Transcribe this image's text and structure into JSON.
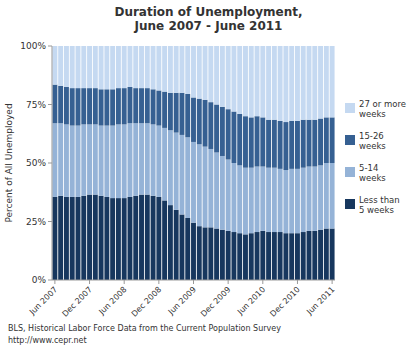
{
  "chart_data": {
    "type": "bar",
    "stacked": true,
    "title": "Duration of Unemployment,\nJune 2007 - June 2011",
    "y_label": "Percent of All Unemployed",
    "annotations": [
      "BLS, Historical Labor Force Data from the Current Population Survey",
      "http://www.cepr.net"
    ],
    "categories": [
      "Jun 2007",
      null,
      null,
      null,
      null,
      null,
      "Dec 2007",
      null,
      null,
      null,
      null,
      null,
      "Jun 2008",
      null,
      null,
      null,
      null,
      null,
      "Dec 2008",
      null,
      null,
      null,
      null,
      null,
      "Jun 2009",
      null,
      null,
      null,
      null,
      null,
      "Dec 2009",
      null,
      null,
      null,
      null,
      null,
      "Jun 2010",
      null,
      null,
      null,
      null,
      null,
      "Dec 2010",
      null,
      null,
      null,
      null,
      null,
      "Jun 2011"
    ],
    "series": [
      {
        "name": "Less than\n5 weeks",
        "color": "#17375E",
        "values": [
          35.5,
          36.0,
          35.5,
          35.5,
          35.5,
          36.0,
          36.5,
          36.5,
          36.0,
          35.5,
          35.0,
          35.0,
          35.0,
          35.5,
          36.0,
          36.5,
          36.5,
          36.0,
          35.5,
          34.0,
          32.0,
          30.0,
          28.0,
          26.5,
          24.5,
          23.0,
          22.5,
          22.5,
          22.0,
          21.5,
          21.0,
          20.5,
          20.0,
          19.5,
          20.0,
          20.5,
          21.0,
          20.5,
          20.5,
          20.5,
          20.0,
          20.0,
          20.0,
          20.5,
          21.0,
          21.0,
          21.5,
          22.0,
          22.0
        ]
      },
      {
        "name": "5-14\nweeks",
        "color": "#95B3D7",
        "values": [
          31.5,
          31.0,
          31.0,
          30.5,
          30.5,
          30.5,
          30.0,
          30.0,
          30.0,
          30.5,
          31.0,
          31.5,
          31.5,
          31.5,
          31.0,
          30.5,
          30.5,
          30.5,
          30.5,
          31.0,
          32.0,
          33.0,
          34.0,
          34.5,
          34.5,
          35.0,
          34.5,
          33.5,
          32.5,
          31.5,
          30.5,
          29.5,
          29.0,
          28.5,
          28.0,
          28.0,
          27.5,
          27.5,
          27.5,
          27.0,
          27.0,
          27.5,
          27.5,
          27.5,
          27.5,
          27.5,
          27.5,
          28.0,
          28.0
        ]
      },
      {
        "name": "15-26\nweeks",
        "color": "#366092",
        "values": [
          16.5,
          16.0,
          16.0,
          16.0,
          16.0,
          15.5,
          15.5,
          15.5,
          15.5,
          15.5,
          15.5,
          15.5,
          15.5,
          15.5,
          15.0,
          15.0,
          15.0,
          15.0,
          15.0,
          15.5,
          16.0,
          17.0,
          18.0,
          18.5,
          19.0,
          19.5,
          20.0,
          20.0,
          20.5,
          21.0,
          21.5,
          22.0,
          22.0,
          22.0,
          21.5,
          21.5,
          21.0,
          20.5,
          20.5,
          20.5,
          20.5,
          20.5,
          20.5,
          20.5,
          20.0,
          20.0,
          20.0,
          19.5,
          19.5
        ]
      },
      {
        "name": "27 or more\nweeks",
        "color": "#C5D9F1",
        "values": [
          16.5,
          17.0,
          17.5,
          18.0,
          18.0,
          18.0,
          18.0,
          18.0,
          18.5,
          18.5,
          18.5,
          18.0,
          18.0,
          17.5,
          18.0,
          18.0,
          18.0,
          18.5,
          19.0,
          19.5,
          20.0,
          20.0,
          20.0,
          20.5,
          22.0,
          22.5,
          23.0,
          24.0,
          25.0,
          26.0,
          27.0,
          28.0,
          29.0,
          30.0,
          30.5,
          30.0,
          30.5,
          31.5,
          31.5,
          32.0,
          32.5,
          32.0,
          32.0,
          31.5,
          31.5,
          31.5,
          31.0,
          30.5,
          30.5
        ]
      }
    ],
    "ylim": [
      0,
      100
    ],
    "yticks": [
      {
        "value": 0,
        "label": "0%"
      },
      {
        "value": 25,
        "label": "25%"
      },
      {
        "value": 50,
        "label": "50%"
      },
      {
        "value": 75,
        "label": "75%"
      },
      {
        "value": 100,
        "label": "100%"
      }
    ],
    "grid": false,
    "legend": "right"
  }
}
